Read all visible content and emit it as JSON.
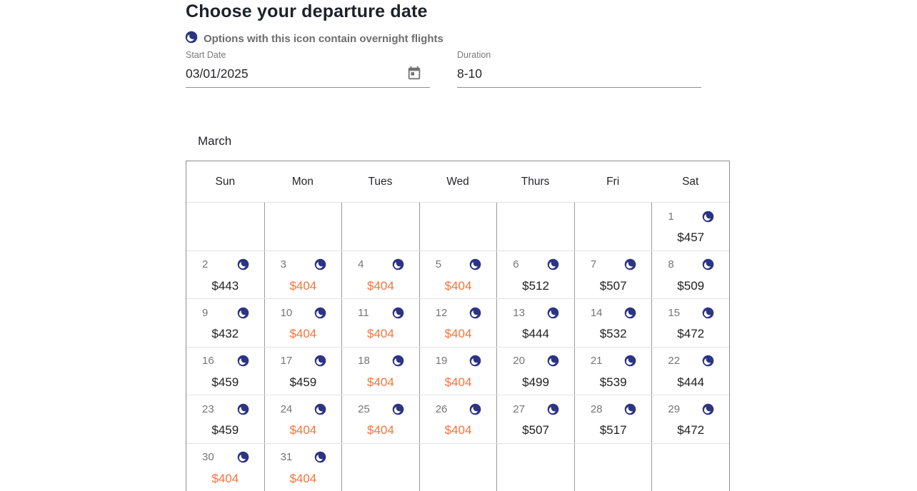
{
  "header": {
    "title": "Choose your departure date",
    "legend_text": "Options with this icon contain overnight flights"
  },
  "form": {
    "start_date": {
      "label": "Start Date",
      "value": "03/01/2025"
    },
    "duration": {
      "label": "Duration",
      "value": "8-10"
    }
  },
  "calendar": {
    "month": "March",
    "weekdays": [
      "Sun",
      "Mon",
      "Tues",
      "Wed",
      "Thurs",
      "Fri",
      "Sat"
    ],
    "weeks": [
      [
        null,
        null,
        null,
        null,
        null,
        null,
        {
          "day": "1",
          "price": "$457",
          "overnight": true,
          "lowest": false
        }
      ],
      [
        {
          "day": "2",
          "price": "$443",
          "overnight": true,
          "lowest": false
        },
        {
          "day": "3",
          "price": "$404",
          "overnight": true,
          "lowest": true
        },
        {
          "day": "4",
          "price": "$404",
          "overnight": true,
          "lowest": true
        },
        {
          "day": "5",
          "price": "$404",
          "overnight": true,
          "lowest": true
        },
        {
          "day": "6",
          "price": "$512",
          "overnight": true,
          "lowest": false
        },
        {
          "day": "7",
          "price": "$507",
          "overnight": true,
          "lowest": false
        },
        {
          "day": "8",
          "price": "$509",
          "overnight": true,
          "lowest": false
        }
      ],
      [
        {
          "day": "9",
          "price": "$432",
          "overnight": true,
          "lowest": false
        },
        {
          "day": "10",
          "price": "$404",
          "overnight": true,
          "lowest": true
        },
        {
          "day": "11",
          "price": "$404",
          "overnight": true,
          "lowest": true
        },
        {
          "day": "12",
          "price": "$404",
          "overnight": true,
          "lowest": true
        },
        {
          "day": "13",
          "price": "$444",
          "overnight": true,
          "lowest": false
        },
        {
          "day": "14",
          "price": "$532",
          "overnight": true,
          "lowest": false
        },
        {
          "day": "15",
          "price": "$472",
          "overnight": true,
          "lowest": false
        }
      ],
      [
        {
          "day": "16",
          "price": "$459",
          "overnight": true,
          "lowest": false
        },
        {
          "day": "17",
          "price": "$459",
          "overnight": true,
          "lowest": false
        },
        {
          "day": "18",
          "price": "$404",
          "overnight": true,
          "lowest": true
        },
        {
          "day": "19",
          "price": "$404",
          "overnight": true,
          "lowest": true
        },
        {
          "day": "20",
          "price": "$499",
          "overnight": true,
          "lowest": false
        },
        {
          "day": "21",
          "price": "$539",
          "overnight": true,
          "lowest": false
        },
        {
          "day": "22",
          "price": "$444",
          "overnight": true,
          "lowest": false
        }
      ],
      [
        {
          "day": "23",
          "price": "$459",
          "overnight": true,
          "lowest": false
        },
        {
          "day": "24",
          "price": "$404",
          "overnight": true,
          "lowest": true
        },
        {
          "day": "25",
          "price": "$404",
          "overnight": true,
          "lowest": true
        },
        {
          "day": "26",
          "price": "$404",
          "overnight": true,
          "lowest": true
        },
        {
          "day": "27",
          "price": "$507",
          "overnight": true,
          "lowest": false
        },
        {
          "day": "28",
          "price": "$517",
          "overnight": true,
          "lowest": false
        },
        {
          "day": "29",
          "price": "$472",
          "overnight": true,
          "lowest": false
        }
      ],
      [
        {
          "day": "30",
          "price": "$404",
          "overnight": true,
          "lowest": true
        },
        {
          "day": "31",
          "price": "$404",
          "overnight": true,
          "lowest": true
        },
        null,
        null,
        null,
        null,
        null
      ]
    ]
  },
  "icons": {
    "overnight": "moon-icon",
    "start_date_picker": "calendar-icon"
  },
  "colors": {
    "overnight_icon_navy": "#2b3583",
    "lowest_price_orange": "#f5743b",
    "price_dark": "#212121",
    "day_number_gray": "#757575"
  }
}
